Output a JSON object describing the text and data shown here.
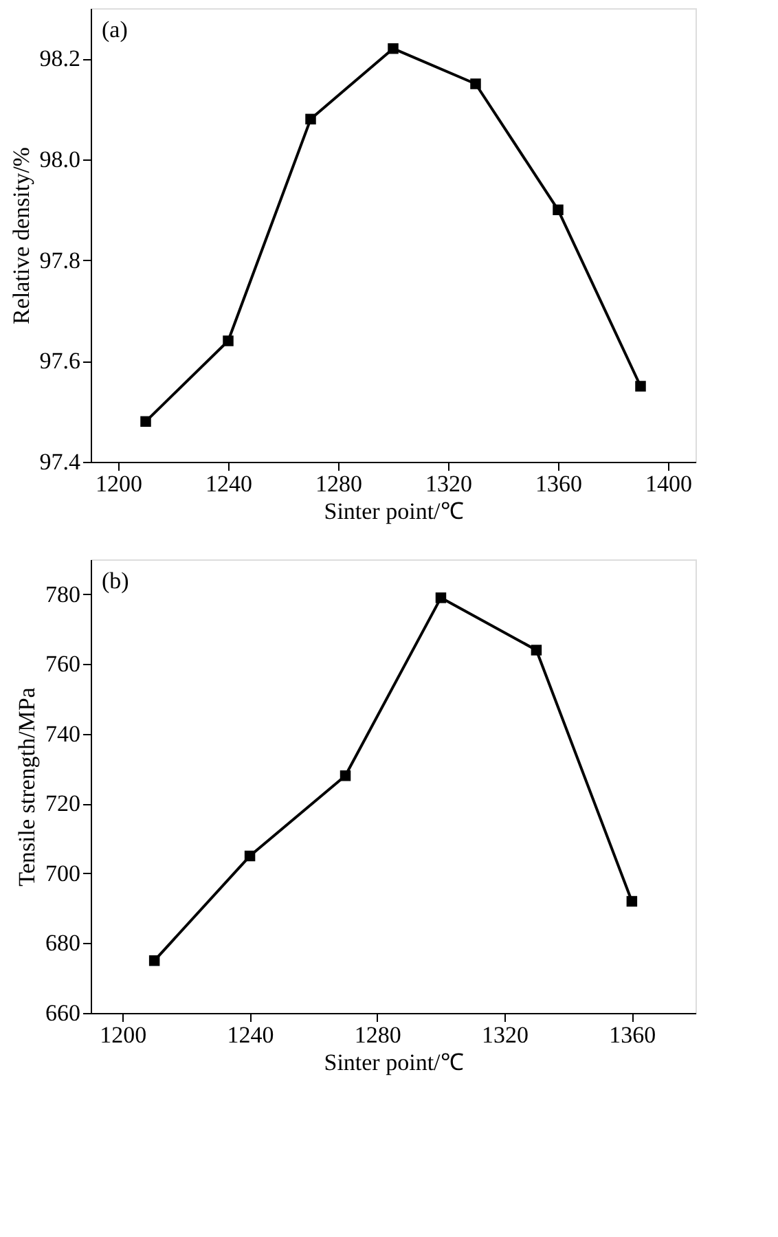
{
  "chart_data": [
    {
      "type": "line",
      "xlabel": "Sinter point/℃",
      "ylabel": "Relative density/%",
      "annotations": [
        "(a)"
      ],
      "marker": "square",
      "line_style": "solid",
      "grid": false,
      "x": [
        1210,
        1240,
        1270,
        1300,
        1330,
        1360,
        1390
      ],
      "series": [
        {
          "color": "#000000",
          "values": [
            97.48,
            97.64,
            98.08,
            98.22,
            98.15,
            97.9,
            97.55
          ]
        }
      ],
      "xlim": [
        1190,
        1410
      ],
      "xticks": [
        1200,
        1240,
        1280,
        1320,
        1360,
        1400
      ],
      "ylim": [
        97.4,
        98.3
      ],
      "yticks": [
        97.4,
        97.6,
        97.8,
        {
          "value": 98.0,
          "label": "98.0"
        },
        98.2
      ]
    },
    {
      "type": "line",
      "xlabel": "Sinter point/℃",
      "ylabel": "Tensile strength/MPa",
      "annotations": [
        "(b)"
      ],
      "marker": "square",
      "line_style": "solid",
      "grid": false,
      "x": [
        1210,
        1240,
        1270,
        1300,
        1330,
        1360
      ],
      "series": [
        {
          "color": "#000000",
          "values": [
            675,
            705,
            728,
            779,
            764,
            692
          ]
        }
      ],
      "xlim": [
        1190,
        1380
      ],
      "xticks": [
        1200,
        1240,
        1280,
        1320,
        1360
      ],
      "ylim": [
        660,
        790
      ],
      "yticks": [
        660,
        680,
        700,
        720,
        740,
        760,
        780
      ]
    }
  ]
}
